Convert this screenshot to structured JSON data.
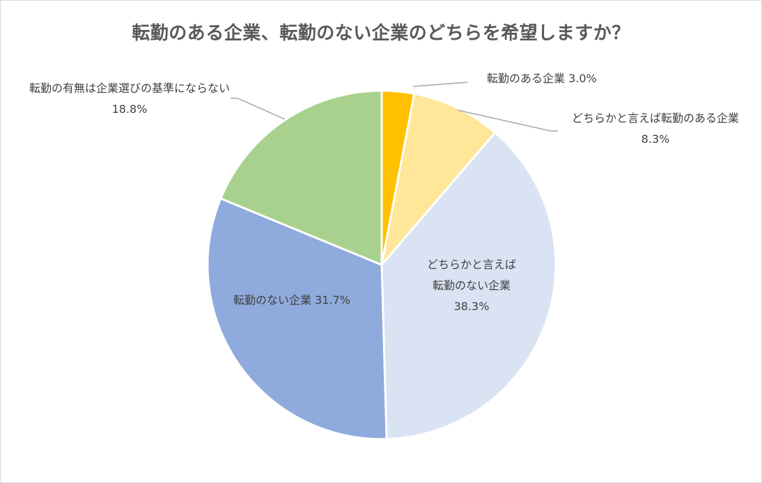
{
  "chart_data": {
    "type": "pie",
    "title": "転勤のある企業、転勤のない企業のどちらを希望しますか？",
    "slices": [
      {
        "label": "転勤のある企業",
        "value": 3.0,
        "value_label": "3.0%",
        "color": "#ffc000"
      },
      {
        "label": "どちらかと言えば転勤のある企業",
        "value": 8.3,
        "value_label": "8.3%",
        "color": "#ffe699"
      },
      {
        "label": "どちらかと言えば転勤のない企業",
        "value": 38.3,
        "value_label": "38.3%",
        "color": "#dae3f3"
      },
      {
        "label": "転勤のない企業",
        "value": 31.7,
        "value_label": "31.7%",
        "color": "#8faadc"
      },
      {
        "label": "転勤の有無は企業選びの基準にならない",
        "value": 18.8,
        "value_label": "18.8%",
        "color": "#a9d18e"
      }
    ]
  }
}
